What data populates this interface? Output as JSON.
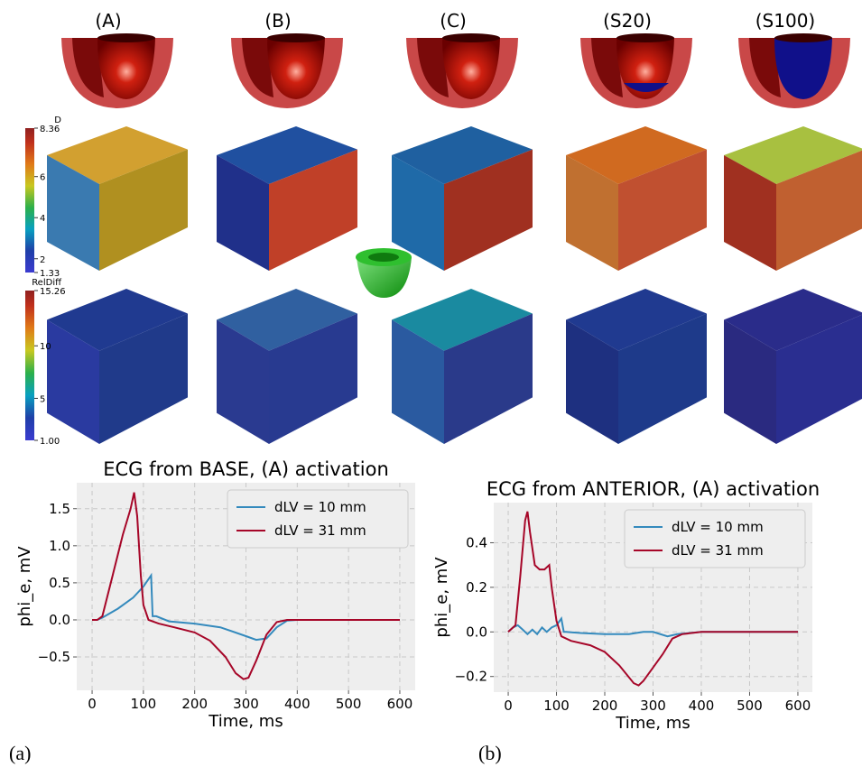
{
  "panels": {
    "labels": [
      "(A)",
      "(B)",
      "(C)",
      "(S20)",
      "(S100)"
    ]
  },
  "colorbars": [
    {
      "title": "D",
      "lim": [
        1.33,
        8.36
      ],
      "ticks": [
        1.33,
        2,
        4,
        6,
        8.36
      ]
    },
    {
      "title": "RelDiff",
      "lim": [
        1,
        15.26
      ],
      "ticks": [
        {
          "value": 1,
          "label": "1.00"
        },
        5,
        10,
        15.26
      ]
    }
  ],
  "captions": [
    "(a)",
    "(b)"
  ],
  "chart_data": [
    {
      "type": "line",
      "title": "ECG from BASE, (A) activation",
      "x_label": "Time, ms",
      "y_label": "phi_e, mV",
      "xlim": [
        -30,
        630
      ],
      "xticks": [
        0,
        100,
        200,
        300,
        400,
        500,
        600
      ],
      "ylim": [
        -0.95,
        1.85
      ],
      "yticks": [
        {
          "value": -0.5,
          "label": "−0.5"
        },
        {
          "value": 0,
          "label": "0.0"
        },
        0.5,
        {
          "value": 1,
          "label": "1.0"
        },
        1.5
      ],
      "grid": true,
      "legend": "upper right",
      "series": [
        {
          "name": "dLV = 10 mm",
          "color": "#348abd",
          "x": [
            0,
            10,
            20,
            50,
            80,
            100,
            115,
            118,
            125,
            150,
            200,
            250,
            300,
            320,
            340,
            360,
            380,
            400,
            600
          ],
          "values": [
            0,
            0,
            0.03,
            0.15,
            0.3,
            0.45,
            0.6,
            0.05,
            0.05,
            -0.02,
            -0.05,
            -0.1,
            -0.22,
            -0.27,
            -0.25,
            -0.1,
            -0.01,
            0,
            0
          ]
        },
        {
          "name": "dLV = 31 mm",
          "color": "#a60628",
          "x": [
            0,
            10,
            20,
            40,
            60,
            75,
            82,
            88,
            95,
            100,
            110,
            130,
            160,
            200,
            230,
            260,
            280,
            295,
            305,
            320,
            340,
            360,
            380,
            400,
            600
          ],
          "values": [
            0,
            0,
            0.05,
            0.6,
            1.15,
            1.5,
            1.72,
            1.4,
            0.6,
            0.2,
            0,
            -0.05,
            -0.1,
            -0.17,
            -0.28,
            -0.5,
            -0.72,
            -0.8,
            -0.78,
            -0.55,
            -0.2,
            -0.03,
            0,
            0,
            0
          ]
        }
      ]
    },
    {
      "type": "line",
      "title": "ECG from ANTERIOR, (A) activation",
      "x_label": "Time, ms",
      "y_label": "phi_e, mV",
      "xlim": [
        -30,
        630
      ],
      "xticks": [
        0,
        100,
        200,
        300,
        400,
        500,
        600
      ],
      "ylim": [
        -0.27,
        0.58
      ],
      "yticks": [
        {
          "value": -0.2,
          "label": "−0.2"
        },
        {
          "value": 0,
          "label": "0.0"
        },
        0.2,
        0.4
      ],
      "grid": true,
      "legend": "upper right",
      "series": [
        {
          "name": "dLV = 10 mm",
          "color": "#348abd",
          "x": [
            0,
            10,
            20,
            30,
            40,
            50,
            60,
            70,
            80,
            90,
            100,
            110,
            115,
            120,
            150,
            200,
            250,
            280,
            300,
            330,
            350,
            400,
            600
          ],
          "values": [
            0,
            0.02,
            0.03,
            0.01,
            -0.01,
            0.01,
            -0.01,
            0.02,
            0,
            0.02,
            0.03,
            0.06,
            0,
            0,
            -0.005,
            -0.01,
            -0.01,
            0,
            0,
            -0.02,
            -0.01,
            0,
            0
          ]
        },
        {
          "name": "dLV = 31 mm",
          "color": "#a60628",
          "x": [
            0,
            15,
            25,
            35,
            40,
            45,
            55,
            65,
            75,
            85,
            90,
            100,
            110,
            130,
            170,
            200,
            230,
            260,
            270,
            280,
            300,
            320,
            340,
            360,
            400,
            600
          ],
          "values": [
            0,
            0.03,
            0.25,
            0.5,
            0.54,
            0.45,
            0.3,
            0.28,
            0.28,
            0.3,
            0.2,
            0.05,
            -0.02,
            -0.04,
            -0.06,
            -0.09,
            -0.15,
            -0.23,
            -0.24,
            -0.22,
            -0.16,
            -0.1,
            -0.03,
            -0.01,
            0,
            0
          ]
        }
      ]
    }
  ]
}
